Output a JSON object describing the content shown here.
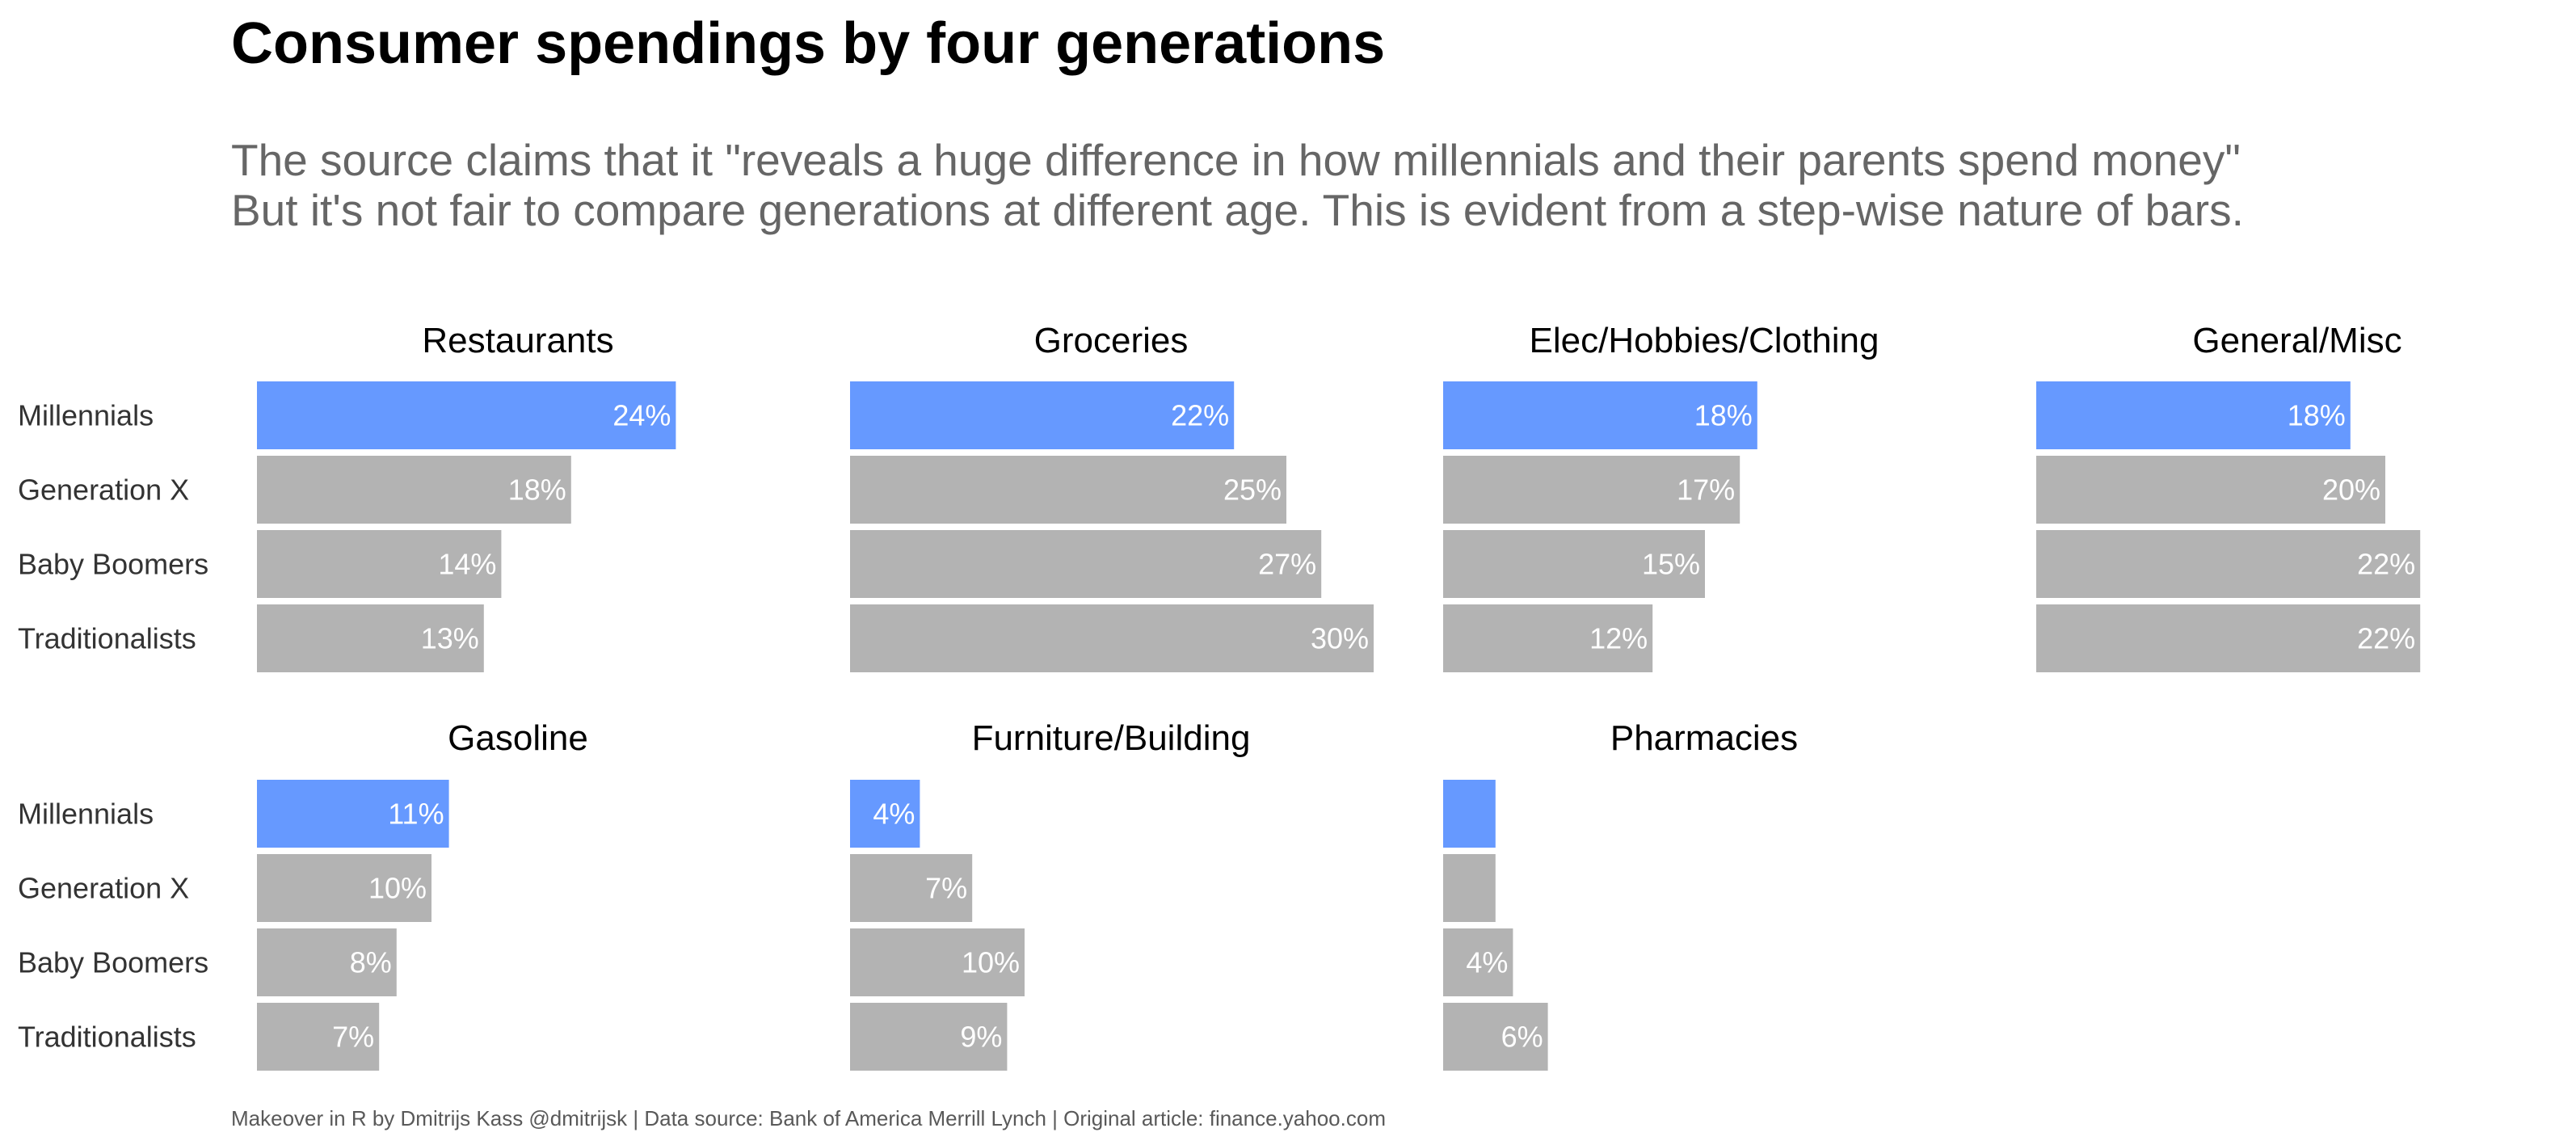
{
  "title": "Consumer spendings by four generations",
  "subtitle": {
    "line1": "The source claims that it \"reveals a huge difference in how millennials and their parents spend money\"",
    "line2": "But it's not fair to compare generations at different age. This is evident from a step-wise nature of bars."
  },
  "caption": "Makeover in R by Dmitrijs Kass @dmitrijsk | Data source: Bank of America Merrill Lynch | Original article: finance.yahoo.com",
  "colors": {
    "highlight": "#6699ff",
    "other": "#b3b3b3",
    "bar_label": "#ffffff"
  },
  "chart_data": {
    "type": "bar",
    "orientation": "horizontal",
    "faceted": true,
    "generations": [
      "Millennials",
      "Generation X",
      "Baby Boomers",
      "Traditionalists"
    ],
    "highlight_generation": "Millennials",
    "value_unit": "%",
    "xlim": [
      0,
      30
    ],
    "grid": false,
    "legend": "none",
    "panels": [
      {
        "name": "Restaurants",
        "values": [
          24,
          18,
          14,
          13
        ],
        "labels": [
          "24%",
          "18%",
          "14%",
          "13%"
        ]
      },
      {
        "name": "Groceries",
        "values": [
          22,
          25,
          27,
          30
        ],
        "labels": [
          "22%",
          "25%",
          "27%",
          "30%"
        ]
      },
      {
        "name": "Elec/Hobbies/Clothing",
        "values": [
          18,
          17,
          15,
          12
        ],
        "labels": [
          "18%",
          "17%",
          "15%",
          "12%"
        ]
      },
      {
        "name": "General/Misc",
        "values": [
          18,
          20,
          22,
          22
        ],
        "labels": [
          "18%",
          "20%",
          "22%",
          "22%"
        ]
      },
      {
        "name": "Gasoline",
        "values": [
          11,
          10,
          8,
          7
        ],
        "labels": [
          "11%",
          "10%",
          "8%",
          "7%"
        ]
      },
      {
        "name": "Furniture/Building",
        "values": [
          4,
          7,
          10,
          9
        ],
        "labels": [
          "4%",
          "7%",
          "10%",
          "9%"
        ]
      },
      {
        "name": "Pharmacies",
        "values": [
          3,
          3,
          4,
          6
        ],
        "labels": [
          "",
          "",
          "4%",
          "6%"
        ]
      }
    ]
  }
}
